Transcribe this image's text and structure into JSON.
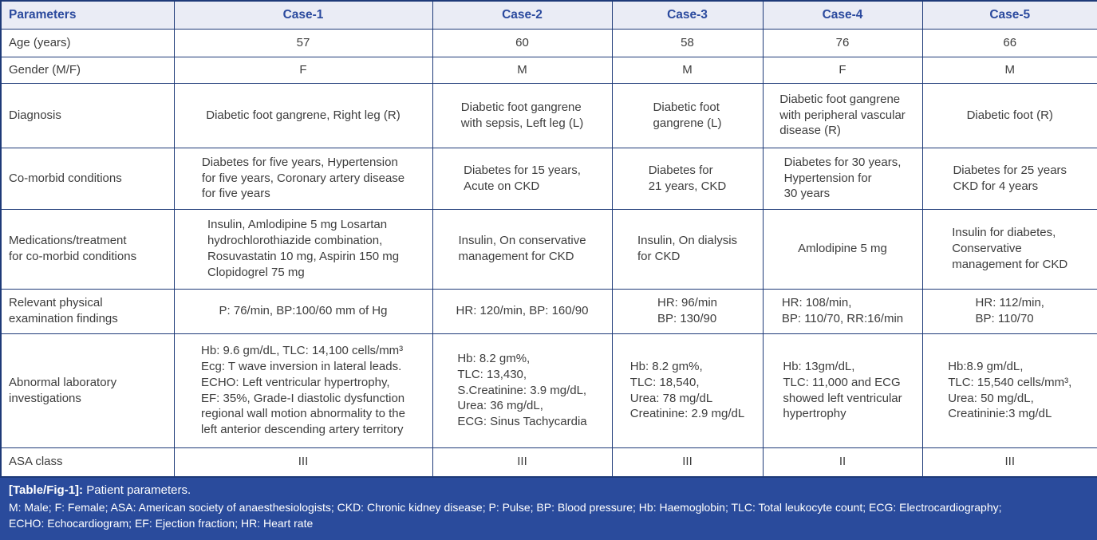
{
  "table": {
    "columns": [
      "Parameters",
      "Case-1",
      "Case-2",
      "Case-3",
      "Case-4",
      "Case-5"
    ],
    "rows": [
      {
        "label": "Age (years)",
        "cells": [
          "57",
          "60",
          "58",
          "76",
          "66"
        ]
      },
      {
        "label": "Gender (M/F)",
        "cells": [
          "F",
          "M",
          "M",
          "F",
          "M"
        ]
      },
      {
        "label": "Diagnosis",
        "cells": [
          "Diabetic foot gangrene, Right leg (R)",
          "Diabetic foot gangrene\nwith sepsis, Left leg (L)",
          "Diabetic foot\ngangrene (L)",
          "Diabetic foot gangrene\nwith peripheral vascular\ndisease (R)",
          "Diabetic foot (R)"
        ]
      },
      {
        "label": "Co-morbid conditions",
        "cells": [
          "Diabetes for five years, Hypertension\nfor five years, Coronary artery disease\nfor five years",
          "Diabetes for 15 years,\nAcute on CKD",
          "Diabetes for\n21 years, CKD",
          "Diabetes for 30 years,\nHypertension for\n30 years",
          "Diabetes for 25 years\nCKD for 4 years"
        ]
      },
      {
        "label": "Medications/treatment\nfor co-morbid conditions",
        "cells": [
          "Insulin, Amlodipine 5 mg Losartan\nhydrochlorothiazide combination,\nRosuvastatin 10 mg, Aspirin 150 mg\nClopidogrel 75 mg",
          "Insulin, On conservative\nmanagement for CKD",
          "Insulin, On dialysis\nfor CKD",
          "Amlodipine 5 mg",
          "Insulin for diabetes,\nConservative\nmanagement for CKD"
        ]
      },
      {
        "label": "Relevant physical\nexamination findings",
        "cells": [
          "P: 76/min, BP:100/60 mm of Hg",
          "HR: 120/min, BP: 160/90",
          "HR: 96/min\nBP: 130/90",
          "HR: 108/min,\nBP: 110/70, RR:16/min",
          "HR: 112/min,\nBP: 110/70"
        ]
      },
      {
        "label": "Abnormal laboratory\ninvestigations",
        "cells": [
          "Hb: 9.6 gm/dL, TLC: 14,100 cells/mm³\nEcg: T wave inversion in lateral leads.\nECHO: Left ventricular hypertrophy,\nEF: 35%, Grade-I diastolic dysfunction\nregional wall motion abnormality to the\nleft anterior descending artery territory",
          "Hb: 8.2 gm%,\nTLC: 13,430,\nS.Creatinine: 3.9 mg/dL,\nUrea: 36 mg/dL,\nECG: Sinus Tachycardia",
          "Hb: 8.2 gm%,\nTLC: 18,540,\nUrea: 78 mg/dL\nCreatinine: 2.9 mg/dL",
          "Hb: 13gm/dL,\nTLC: 11,000 and ECG\nshowed left ventricular\nhypertrophy",
          "Hb:8.9 gm/dL,\nTLC: 15,540 cells/mm³,\nUrea: 50 mg/dL,\nCreatininie:3 mg/dL"
        ]
      },
      {
        "label": "ASA class",
        "cells": [
          "III",
          "III",
          "III",
          "II",
          "III"
        ]
      }
    ]
  },
  "footer": {
    "caption_label": "[Table/Fig-1]:",
    "caption_text": "Patient parameters.",
    "footnote_line1": "M: Male; F: Female; ASA: American society of anaesthesiologists; CKD: Chronic kidney disease; P: Pulse; BP: Blood pressure; Hb: Haemoglobin; TLC: Total leukocyte count; ECG: Electrocardiography;",
    "footnote_line2": "ECHO: Echocardiogram; EF: Ejection fraction; HR: Heart rate"
  },
  "colors": {
    "border_navy": "#1e3a78",
    "header_bg": "#eaecf5",
    "header_text": "#2b4a9e",
    "body_text": "#3d3d3d",
    "footer_bg": "#2a4b9c",
    "footer_text": "#ffffff"
  }
}
